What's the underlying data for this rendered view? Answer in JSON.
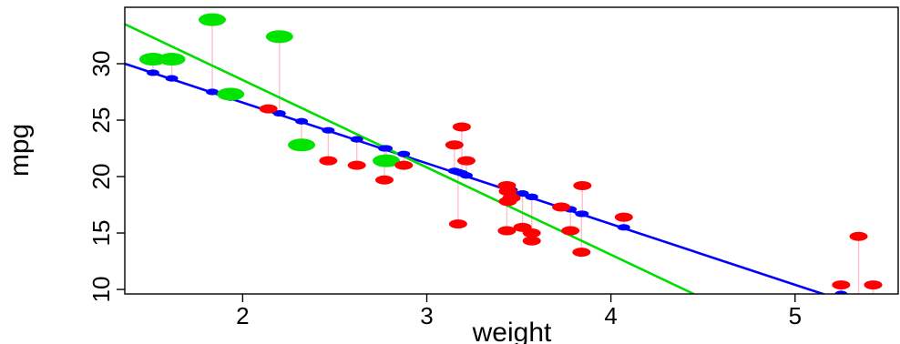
{
  "chart_data": {
    "type": "scatter",
    "xlabel": "weight",
    "ylabel": "mpg",
    "xlim": [
      1.36,
      5.56
    ],
    "ylim": [
      9.6,
      35.0
    ],
    "xticks": [
      {
        "value": 2,
        "label": "2"
      },
      {
        "value": 3,
        "label": "3"
      },
      {
        "value": 4,
        "label": "4"
      },
      {
        "value": 5,
        "label": "5"
      }
    ],
    "yticks": [
      {
        "value": 10,
        "label": "10"
      },
      {
        "value": 15,
        "label": "15"
      },
      {
        "value": 20,
        "label": "20"
      },
      {
        "value": 25,
        "label": "25"
      },
      {
        "value": 30,
        "label": "30"
      }
    ],
    "grid": false,
    "colors": {
      "observed_low": "#ff0000",
      "observed_high": "#00e400",
      "residual_segment": "#ffc0cb",
      "fitted_point": "#0000ff",
      "line_blue": "#0000ff",
      "line_green": "#00dd00"
    },
    "lines": [
      {
        "color": "blue",
        "points": [
          [
            1.36,
            30.0
          ],
          [
            5.56,
            7.4
          ]
        ]
      },
      {
        "color": "green",
        "points": [
          [
            1.36,
            33.5
          ],
          [
            4.45,
            9.6
          ]
        ]
      }
    ],
    "points": [
      {
        "x": 1.513,
        "obs": 30.4,
        "fit": 29.2,
        "group": "green"
      },
      {
        "x": 1.615,
        "obs": 30.4,
        "fit": 28.7,
        "group": "green"
      },
      {
        "x": 1.835,
        "obs": 33.9,
        "fit": 27.5,
        "group": "green"
      },
      {
        "x": 1.935,
        "obs": 27.3,
        "fit": 27.0,
        "group": "green"
      },
      {
        "x": 2.14,
        "obs": 26.0,
        "fit": 25.9,
        "group": "red"
      },
      {
        "x": 2.2,
        "obs": 32.4,
        "fit": 25.6,
        "group": "green"
      },
      {
        "x": 2.32,
        "obs": 22.8,
        "fit": 24.9,
        "group": "green"
      },
      {
        "x": 2.465,
        "obs": 21.4,
        "fit": 24.1,
        "group": "red"
      },
      {
        "x": 2.62,
        "obs": 21.0,
        "fit": 23.3,
        "group": "red"
      },
      {
        "x": 2.77,
        "obs": 19.7,
        "fit": 22.5,
        "group": "red"
      },
      {
        "x": 2.78,
        "obs": 21.4,
        "fit": 22.5,
        "group": "green"
      },
      {
        "x": 2.875,
        "obs": 21.0,
        "fit": 22.0,
        "group": "red"
      },
      {
        "x": 3.15,
        "obs": 22.8,
        "fit": 20.5,
        "group": "red"
      },
      {
        "x": 3.17,
        "obs": 15.8,
        "fit": 20.4,
        "group": "red"
      },
      {
        "x": 3.19,
        "obs": 24.4,
        "fit": 20.3,
        "group": "red"
      },
      {
        "x": 3.215,
        "obs": 21.4,
        "fit": 20.1,
        "group": "red"
      },
      {
        "x": 3.435,
        "obs": 19.2,
        "fit": 18.9,
        "group": "red"
      },
      {
        "x": 3.44,
        "obs": 18.7,
        "fit": 18.9,
        "group": "red"
      },
      {
        "x": 3.44,
        "obs": 17.8,
        "fit": 18.9,
        "group": "red"
      },
      {
        "x": 3.435,
        "obs": 15.2,
        "fit": 18.9,
        "group": "red"
      },
      {
        "x": 3.46,
        "obs": 18.1,
        "fit": 18.8,
        "group": "red"
      },
      {
        "x": 3.52,
        "obs": 15.5,
        "fit": 18.5,
        "group": "red"
      },
      {
        "x": 3.57,
        "obs": 14.3,
        "fit": 18.2,
        "group": "red"
      },
      {
        "x": 3.57,
        "obs": 15.0,
        "fit": 18.2,
        "group": "red"
      },
      {
        "x": 3.73,
        "obs": 17.3,
        "fit": 17.3,
        "group": "red"
      },
      {
        "x": 3.78,
        "obs": 15.2,
        "fit": 17.1,
        "group": "red"
      },
      {
        "x": 3.84,
        "obs": 13.3,
        "fit": 16.7,
        "group": "red"
      },
      {
        "x": 3.845,
        "obs": 19.2,
        "fit": 16.7,
        "group": "red"
      },
      {
        "x": 4.07,
        "obs": 16.4,
        "fit": 15.5,
        "group": "red"
      },
      {
        "x": 5.25,
        "obs": 10.4,
        "fit": 9.6,
        "group": "red"
      },
      {
        "x": 5.345,
        "obs": 14.7,
        "fit": 9.1,
        "group": "red"
      },
      {
        "x": 5.424,
        "obs": 10.4,
        "fit": 8.6,
        "group": "red"
      }
    ]
  }
}
